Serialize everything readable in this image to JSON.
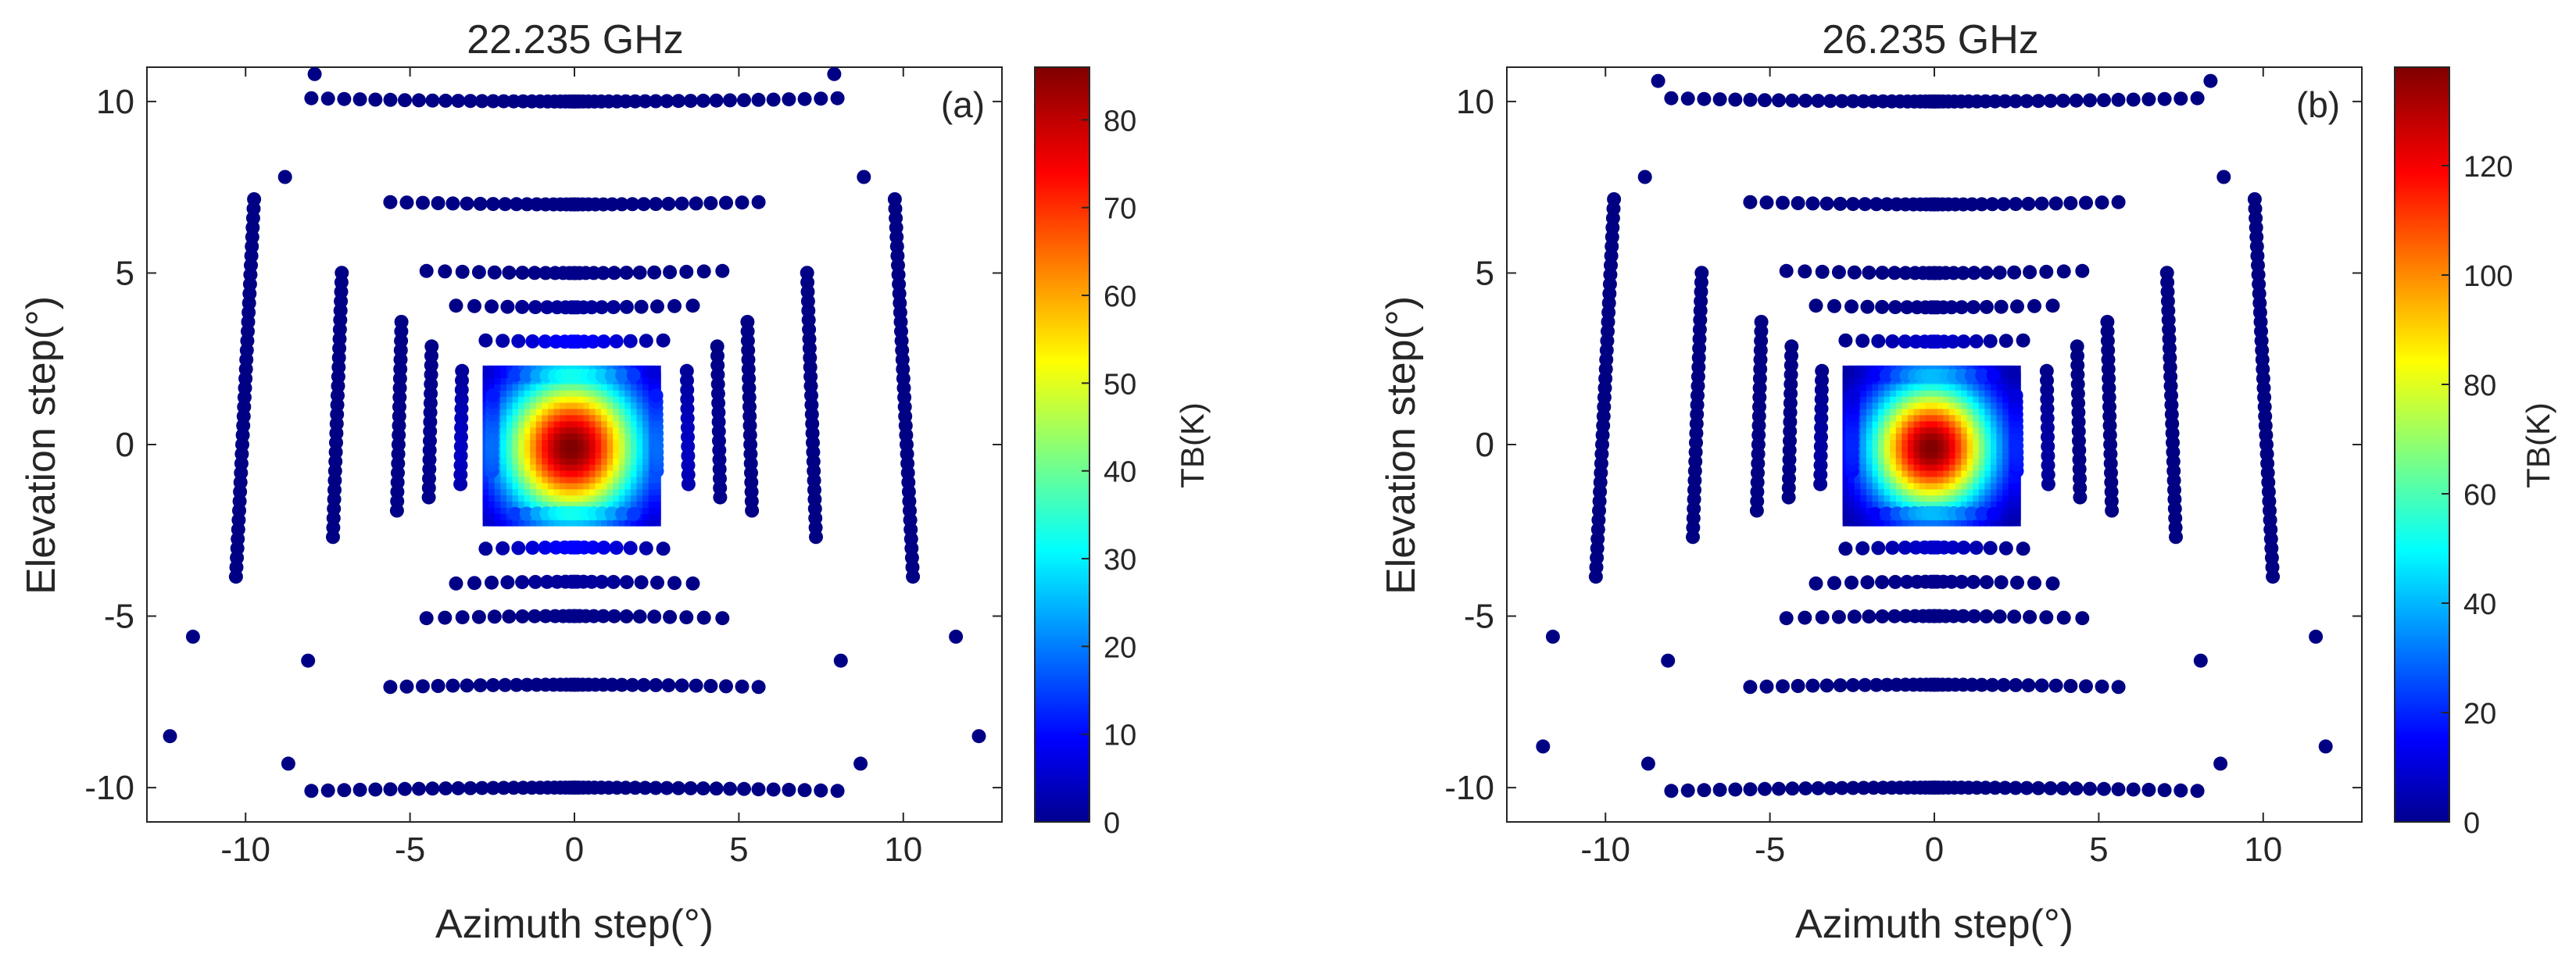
{
  "chart_data": [
    {
      "type": "scatter",
      "title": "22.235 GHz",
      "panel_label": "(a)",
      "xlabel": "Azimuth step(°)",
      "ylabel": "Elevation step(°)",
      "xlim": [
        -13,
        13
      ],
      "ylim": [
        -11,
        11
      ],
      "xticks": [
        "-10",
        "-5",
        "0",
        "5",
        "10"
      ],
      "yticks": [
        "10",
        "5",
        "0",
        "-5",
        "-10"
      ],
      "colorbar": {
        "label": "TB(K)",
        "min": 0,
        "max": 86,
        "colormap": "jet",
        "ticks": [
          "0",
          "10",
          "20",
          "30",
          "40",
          "50",
          "60",
          "70",
          "80"
        ]
      },
      "peak_tb": 86,
      "beam_sigma_deg": 1.45,
      "background_tb": 0.5,
      "ring_scan": [
        {
          "half_deg": 10,
          "y_scale": 0.985,
          "ends": [
            [
              -12.3,
              -8.5
            ],
            [
              12.3,
              -8.5
            ]
          ],
          "top_ends": [
            [
              -7.9,
              10.8
            ],
            [
              7.9,
              10.8
            ]
          ]
        },
        {
          "half_deg": 7,
          "y_scale": 0.985
        },
        {
          "half_deg": 5,
          "y_scale": 0.985
        },
        {
          "half_deg": 4,
          "y_scale": 0.985
        },
        {
          "half_deg": 3,
          "y_scale": 0.985
        },
        {
          "half_deg": 2,
          "y_scale": 0.985
        }
      ]
    },
    {
      "type": "scatter",
      "title": "26.235 GHz",
      "panel_label": "(b)",
      "xlabel": "Azimuth step(°)",
      "ylabel": "Elevation step(°)",
      "xlim": [
        -13,
        13
      ],
      "ylim": [
        -11,
        11
      ],
      "xticks": [
        "-10",
        "-5",
        "0",
        "5",
        "10"
      ],
      "yticks": [
        "10",
        "5",
        "0",
        "-5",
        "-10"
      ],
      "colorbar": {
        "label": "TB(K)",
        "min": 0,
        "max": 138,
        "colormap": "jet",
        "ticks": [
          "0",
          "20",
          "40",
          "60",
          "80",
          "100",
          "120"
        ]
      },
      "peak_tb": 138,
      "beam_sigma_deg": 1.3,
      "background_tb": 0.5,
      "ring_scan": [
        {
          "half_deg": 10,
          "y_scale": 0.985,
          "ends": [
            [
              -11.9,
              -8.8
            ],
            [
              11.9,
              -8.8
            ]
          ],
          "top_ends": [
            [
              -8.4,
              10.6
            ],
            [
              8.4,
              10.6
            ]
          ]
        },
        {
          "half_deg": 7,
          "y_scale": 0.985
        },
        {
          "half_deg": 5,
          "y_scale": 0.985
        },
        {
          "half_deg": 4,
          "y_scale": 0.985
        },
        {
          "half_deg": 3,
          "y_scale": 0.985
        },
        {
          "half_deg": 2,
          "y_scale": 0.985
        }
      ]
    }
  ]
}
